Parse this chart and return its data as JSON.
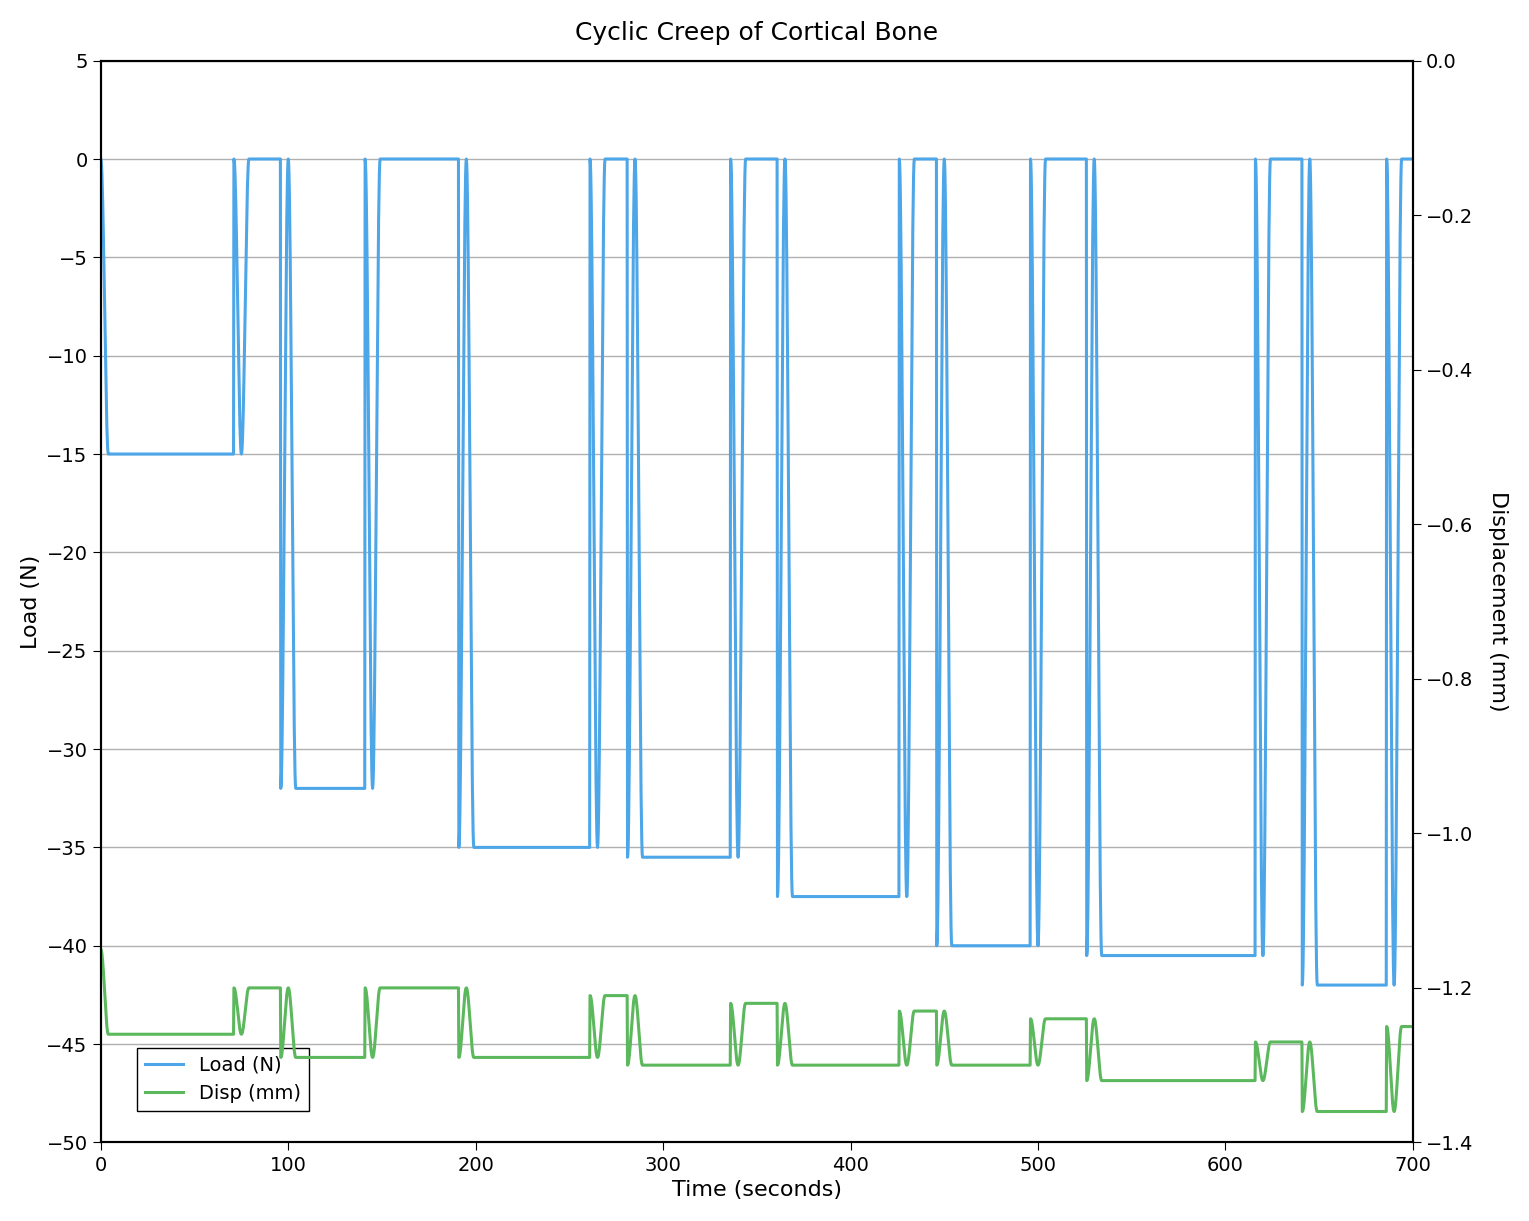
{
  "title": "Cyclic Creep of Cortical Bone",
  "xlabel": "Time (seconds)",
  "ylabel_left": "Load (N)",
  "ylabel_right": "Displacement (mm)",
  "xlim": [
    0,
    700
  ],
  "ylim_left": [
    -50,
    5
  ],
  "ylim_right": [
    -1.4,
    0
  ],
  "yticks_left": [
    5,
    0,
    -5,
    -10,
    -15,
    -20,
    -25,
    -30,
    -35,
    -40,
    -45,
    -50
  ],
  "yticks_right": [
    0,
    -0.2,
    -0.4,
    -0.6,
    -0.8,
    -1.0,
    -1.2,
    -1.4
  ],
  "xticks": [
    0,
    100,
    200,
    300,
    400,
    500,
    600,
    700
  ],
  "load_color": "#4da6e8",
  "disp_color": "#5cb85c",
  "grid_color": "#b0b0b0",
  "background_color": "#ffffff",
  "legend_labels": [
    "Load (N)",
    "Disp (mm)"
  ],
  "load_linewidth": 2.2,
  "disp_linewidth": 2.2,
  "load_cycles": [
    {
      "t_on": 0,
      "t_off": 75,
      "peak": -15.0
    },
    {
      "t_on": 100,
      "t_off": 145,
      "peak": -32.0
    },
    {
      "t_on": 195,
      "t_off": 265,
      "peak": -35.0
    },
    {
      "t_on": 285,
      "t_off": 340,
      "peak": -35.5
    },
    {
      "t_on": 365,
      "t_off": 430,
      "peak": -37.5
    },
    {
      "t_on": 450,
      "t_off": 500,
      "peak": -40.0
    },
    {
      "t_on": 530,
      "t_off": 620,
      "peak": -40.5
    },
    {
      "t_on": 645,
      "t_off": 690,
      "peak": -42.0
    }
  ],
  "disp_cycles": [
    {
      "t_on": 0,
      "t_off": 75,
      "v_unloaded": -1.15,
      "v_loaded": -1.26
    },
    {
      "t_on": 100,
      "t_off": 145,
      "v_unloaded": -1.2,
      "v_loaded": -1.29
    },
    {
      "t_on": 195,
      "t_off": 265,
      "v_unloaded": -1.2,
      "v_loaded": -1.29
    },
    {
      "t_on": 285,
      "t_off": 340,
      "v_unloaded": -1.21,
      "v_loaded": -1.3
    },
    {
      "t_on": 365,
      "t_off": 430,
      "v_unloaded": -1.22,
      "v_loaded": -1.3
    },
    {
      "t_on": 450,
      "t_off": 500,
      "v_unloaded": -1.23,
      "v_loaded": -1.3
    },
    {
      "t_on": 530,
      "t_off": 620,
      "v_unloaded": -1.24,
      "v_loaded": -1.32
    },
    {
      "t_on": 645,
      "t_off": 690,
      "v_unloaded": -1.27,
      "v_loaded": -1.36
    }
  ]
}
